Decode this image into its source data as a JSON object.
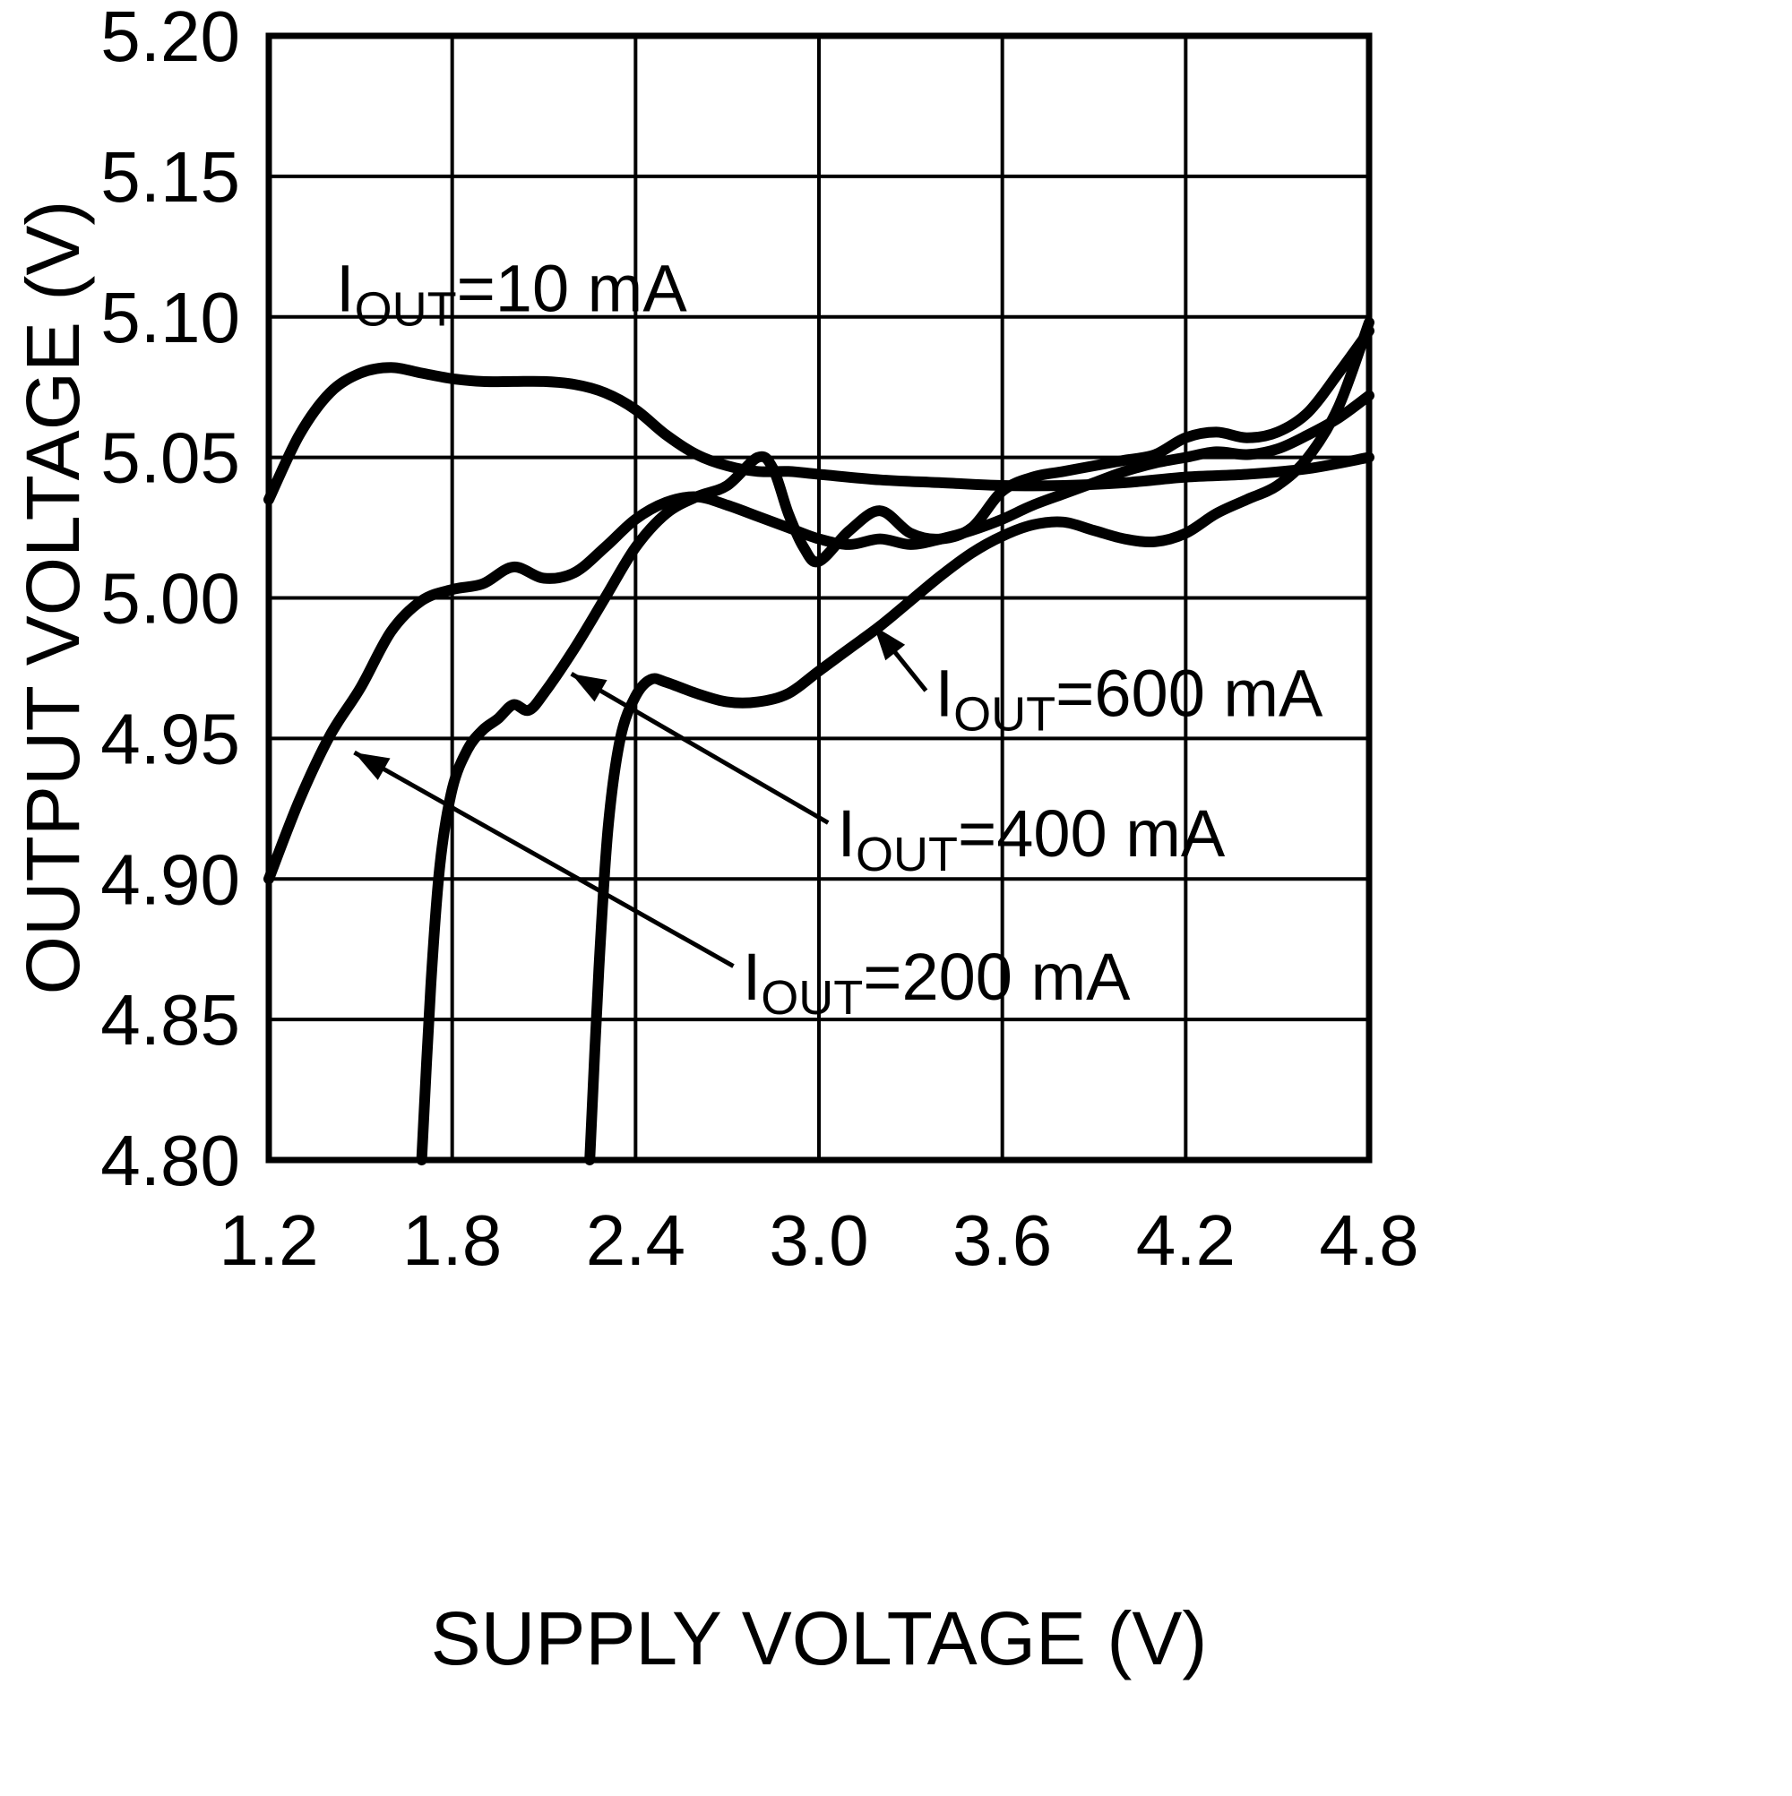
{
  "colors": {
    "foreground": "#000000",
    "background": "#ffffff"
  },
  "chart_data": {
    "type": "line",
    "title": "",
    "xlabel": "SUPPLY VOLTAGE (V)",
    "ylabel": "OUTPUT VOLTAGE (V)",
    "xlim": [
      1.2,
      4.8
    ],
    "ylim": [
      4.8,
      5.2
    ],
    "grid": true,
    "legend_position": "inline-annotations",
    "xticks": [
      1.2,
      1.8,
      2.4,
      3.0,
      3.6,
      4.2,
      4.8
    ],
    "xtick_labels": [
      "1.2",
      "1.8",
      "2.4",
      "3.0",
      "3.6",
      "4.2",
      "4.8"
    ],
    "yticks": [
      4.8,
      4.85,
      4.9,
      4.95,
      5.0,
      5.05,
      5.1,
      5.15,
      5.2
    ],
    "ytick_labels": [
      "4.80",
      "4.85",
      "4.90",
      "4.95",
      "5.00",
      "5.05",
      "5.10",
      "5.15",
      "5.20"
    ],
    "series": [
      {
        "id": "iout-10ma",
        "name": "IOUT=10 mA",
        "x": [
          1.2,
          1.3,
          1.4,
          1.5,
          1.6,
          1.7,
          1.8,
          1.9,
          2.0,
          2.1,
          2.2,
          2.3,
          2.4,
          2.5,
          2.6,
          2.7,
          2.8,
          2.9,
          3.0,
          3.2,
          3.4,
          3.6,
          3.8,
          4.0,
          4.2,
          4.4,
          4.6,
          4.8
        ],
        "y": [
          5.035,
          5.058,
          5.073,
          5.08,
          5.082,
          5.08,
          5.078,
          5.077,
          5.077,
          5.077,
          5.076,
          5.073,
          5.067,
          5.058,
          5.051,
          5.047,
          5.045,
          5.045,
          5.044,
          5.042,
          5.041,
          5.04,
          5.04,
          5.041,
          5.043,
          5.044,
          5.046,
          5.05
        ]
      },
      {
        "id": "iout-200ma",
        "name": "IOUT=200 mA",
        "x": [
          1.2,
          1.3,
          1.4,
          1.5,
          1.6,
          1.7,
          1.8,
          1.9,
          2.0,
          2.1,
          2.2,
          2.3,
          2.4,
          2.5,
          2.6,
          2.7,
          2.8,
          2.9,
          3.0,
          3.1,
          3.2,
          3.3,
          3.4,
          3.5,
          3.6,
          3.7,
          3.8,
          3.9,
          4.0,
          4.1,
          4.2,
          4.3,
          4.4,
          4.5,
          4.6,
          4.7,
          4.8
        ],
        "y": [
          4.9,
          4.928,
          4.951,
          4.968,
          4.988,
          4.999,
          5.003,
          5.005,
          5.011,
          5.007,
          5.009,
          5.018,
          5.028,
          5.034,
          5.036,
          5.033,
          5.029,
          5.025,
          5.021,
          5.019,
          5.021,
          5.019,
          5.021,
          5.024,
          5.028,
          5.033,
          5.037,
          5.041,
          5.045,
          5.048,
          5.05,
          5.052,
          5.051,
          5.053,
          5.058,
          5.064,
          5.072
        ]
      },
      {
        "id": "iout-400ma",
        "name": "IOUT=400 mA",
        "x": [
          1.7,
          1.73,
          1.76,
          1.8,
          1.85,
          1.9,
          1.95,
          2.0,
          2.05,
          2.1,
          2.2,
          2.3,
          2.4,
          2.5,
          2.6,
          2.7,
          2.8,
          2.85,
          2.9,
          2.95,
          3.0,
          3.1,
          3.2,
          3.3,
          3.4,
          3.5,
          3.6,
          3.7,
          3.8,
          3.9,
          4.0,
          4.1,
          4.2,
          4.3,
          4.4,
          4.5,
          4.6,
          4.7,
          4.8
        ],
        "y": [
          4.8,
          4.862,
          4.905,
          4.932,
          4.946,
          4.953,
          4.957,
          4.962,
          4.96,
          4.966,
          4.982,
          5.0,
          5.018,
          5.03,
          5.036,
          5.04,
          5.05,
          5.046,
          5.03,
          5.018,
          5.013,
          5.024,
          5.031,
          5.023,
          5.021,
          5.025,
          5.038,
          5.043,
          5.045,
          5.047,
          5.049,
          5.051,
          5.057,
          5.059,
          5.057,
          5.059,
          5.066,
          5.08,
          5.095
        ]
      },
      {
        "id": "iout-600ma",
        "name": "IOUT=600 mA",
        "x": [
          2.25,
          2.28,
          2.31,
          2.35,
          2.4,
          2.45,
          2.5,
          2.6,
          2.7,
          2.8,
          2.9,
          3.0,
          3.1,
          3.2,
          3.3,
          3.4,
          3.5,
          3.6,
          3.7,
          3.8,
          3.9,
          4.0,
          4.1,
          4.2,
          4.3,
          4.4,
          4.5,
          4.6,
          4.7,
          4.8
        ],
        "y": [
          4.8,
          4.868,
          4.918,
          4.95,
          4.965,
          4.971,
          4.97,
          4.966,
          4.963,
          4.963,
          4.966,
          4.974,
          4.982,
          4.99,
          4.999,
          5.008,
          5.016,
          5.022,
          5.026,
          5.027,
          5.024,
          5.021,
          5.02,
          5.023,
          5.03,
          5.035,
          5.04,
          5.05,
          5.068,
          5.098
        ]
      }
    ],
    "annotations": [
      {
        "main": "I",
        "sub": "OUT",
        "rest": "=10 mA",
        "x": 1.42,
        "y": 5.102,
        "arrow": null
      },
      {
        "main": "I",
        "sub": "OUT",
        "rest": "=600 mA",
        "x": 3.38,
        "y": 4.958,
        "arrow": {
          "from": [
            3.35,
            4.967
          ],
          "to": [
            3.18,
            4.99
          ]
        }
      },
      {
        "main": "I",
        "sub": "OUT",
        "rest": "=400 mA",
        "x": 3.06,
        "y": 4.908,
        "arrow": {
          "from": [
            3.03,
            4.92
          ],
          "to": [
            2.19,
            4.973
          ]
        }
      },
      {
        "main": "I",
        "sub": "OUT",
        "rest": "=200 mA",
        "x": 2.75,
        "y": 4.857,
        "arrow": {
          "from": [
            2.72,
            4.869
          ],
          "to": [
            1.48,
            4.945
          ]
        }
      }
    ]
  }
}
